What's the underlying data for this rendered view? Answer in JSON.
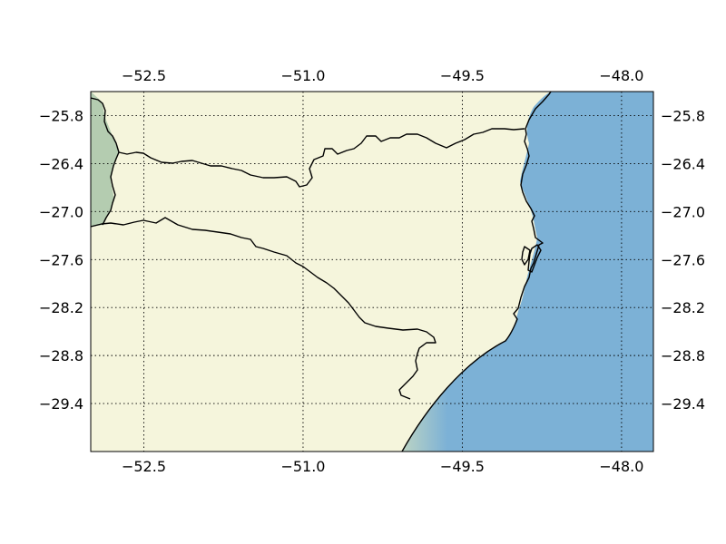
{
  "map": {
    "type": "map",
    "lon_range": [
      -53.0,
      -47.7
    ],
    "lat_range": [
      -30.0,
      -25.5
    ],
    "lon_ticks": [
      -52.5,
      -51.0,
      -49.5,
      -48.0
    ],
    "lat_ticks": [
      -25.8,
      -26.4,
      -27.0,
      -27.6,
      -28.2,
      -28.8,
      -29.4
    ],
    "lon_tick_labels": [
      "−52.5",
      "−51.0",
      "−49.5",
      "−48.0"
    ],
    "lat_tick_labels": [
      "−25.8",
      "−26.4",
      "−27.0",
      "−27.6",
      "−28.2",
      "−28.8",
      "−29.4"
    ],
    "grid": "dotted",
    "labels_top": true,
    "labels_bottom": true,
    "labels_left": true,
    "labels_right": true,
    "colors": {
      "land": "#f5f5dc",
      "ocean": "#7cb1d6",
      "ocean_coastal": "#bcd4c4",
      "western_region": "#b4ccb0",
      "boundary": "#000000"
    }
  }
}
